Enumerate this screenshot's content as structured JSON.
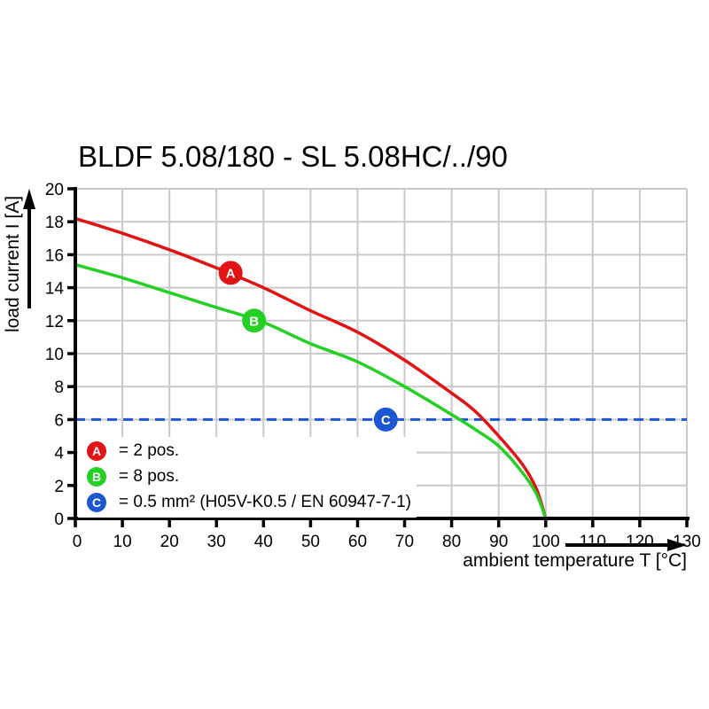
{
  "title": "BLDF 5.08/180 - SL 5.08HC/../90",
  "chart_data": {
    "type": "line",
    "title": "BLDF 5.08/180 - SL 5.08HC/../90",
    "xlabel": "ambient temperature T [°C]",
    "ylabel": "load current I [A]",
    "xlim": [
      0,
      130
    ],
    "ylim": [
      0,
      20
    ],
    "x_ticks": [
      0,
      10,
      20,
      30,
      40,
      50,
      60,
      70,
      80,
      90,
      100,
      110,
      120,
      130
    ],
    "y_ticks": [
      0,
      2,
      4,
      6,
      8,
      10,
      12,
      14,
      16,
      18,
      20
    ],
    "grid": true,
    "legend_position": "bottom-left-inside",
    "series": [
      {
        "name": "A = 2 pos.",
        "color": "#e21314",
        "style": "solid",
        "points": [
          [
            0,
            18.2
          ],
          [
            10,
            17.3
          ],
          [
            20,
            16.3
          ],
          [
            30,
            15.2
          ],
          [
            40,
            14.0
          ],
          [
            50,
            12.6
          ],
          [
            60,
            11.3
          ],
          [
            70,
            9.6
          ],
          [
            80,
            7.6
          ],
          [
            85,
            6.5
          ],
          [
            90,
            5.0
          ],
          [
            95,
            3.3
          ],
          [
            98,
            1.8
          ],
          [
            100,
            0
          ]
        ]
      },
      {
        "name": "B = 8 pos.",
        "color": "#24d024",
        "style": "solid",
        "points": [
          [
            0,
            15.4
          ],
          [
            10,
            14.6
          ],
          [
            20,
            13.7
          ],
          [
            30,
            12.8
          ],
          [
            40,
            11.9
          ],
          [
            50,
            10.6
          ],
          [
            60,
            9.5
          ],
          [
            70,
            8.0
          ],
          [
            80,
            6.3
          ],
          [
            85,
            5.4
          ],
          [
            90,
            4.4
          ],
          [
            95,
            2.8
          ],
          [
            98,
            1.5
          ],
          [
            100,
            0
          ]
        ]
      },
      {
        "name": "C = 0.5 mm² (H05V-K0.5 / EN 60947-7-1)",
        "color": "#1b57d2",
        "style": "dashed",
        "points": [
          [
            0,
            6
          ],
          [
            130,
            6
          ]
        ]
      }
    ],
    "markers": [
      {
        "label": "A",
        "x": 33,
        "y": 14.9,
        "color": "#e21314"
      },
      {
        "label": "B",
        "x": 38,
        "y": 12.0,
        "color": "#24d024"
      },
      {
        "label": "C",
        "x": 66,
        "y": 6.0,
        "color": "#1b57d2"
      }
    ]
  },
  "legend": {
    "items": [
      {
        "label": "A",
        "text": "= 2 pos.",
        "color": "#e21314"
      },
      {
        "label": "B",
        "text": "= 8 pos.",
        "color": "#24d024"
      },
      {
        "label": "C",
        "text": "= 0.5 mm² (H05V-K0.5 / EN 60947-7-1)",
        "color": "#1b57d2"
      }
    ]
  },
  "colors": {
    "grid": "#c9c9c9",
    "axis": "#000000",
    "background": "#ffffff"
  }
}
